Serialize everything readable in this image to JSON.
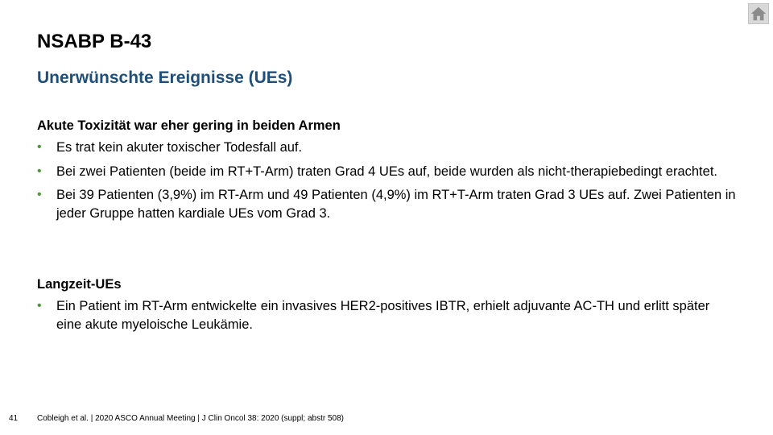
{
  "header": {
    "title": "NSABP B-43",
    "subtitle": "Unerwünschte Ereignisse (UEs)"
  },
  "sections": [
    {
      "heading": "Akute Toxizität war eher gering in beiden Armen",
      "bullets": [
        "Es trat kein akuter toxischer Todesfall auf.",
        "Bei zwei Patienten (beide im RT+T-Arm) traten Grad 4 UEs auf, beide wurden als nicht-therapiebedingt erachtet.",
        "Bei 39 Patienten (3,9%) im RT-Arm und 49 Patienten (4,9%) im RT+T-Arm traten Grad 3 UEs auf. Zwei Patienten in jeder Gruppe hatten kardiale UEs vom Grad 3."
      ]
    },
    {
      "heading": "Langzeit-UEs",
      "bullets": [
        "Ein Patient im RT-Arm entwickelte ein invasives HER2-positives IBTR, erhielt adjuvante AC-TH und erlitt später eine akute myeloische Leukämie."
      ]
    }
  ],
  "bullet_marker": "•",
  "footer": {
    "page_number": "41",
    "citation": "Cobleigh et al. | 2020 ASCO Annual Meeting | J Clin Oncol 38: 2020 (suppl; abstr 508)"
  },
  "icons": {
    "home": "home-icon"
  },
  "colors": {
    "title": "#000000",
    "subtitle": "#1f4e79",
    "bullet_marker": "#4e9a3a",
    "home_button_bg": "#d9d9d9",
    "home_icon": "#8c8c8c"
  }
}
